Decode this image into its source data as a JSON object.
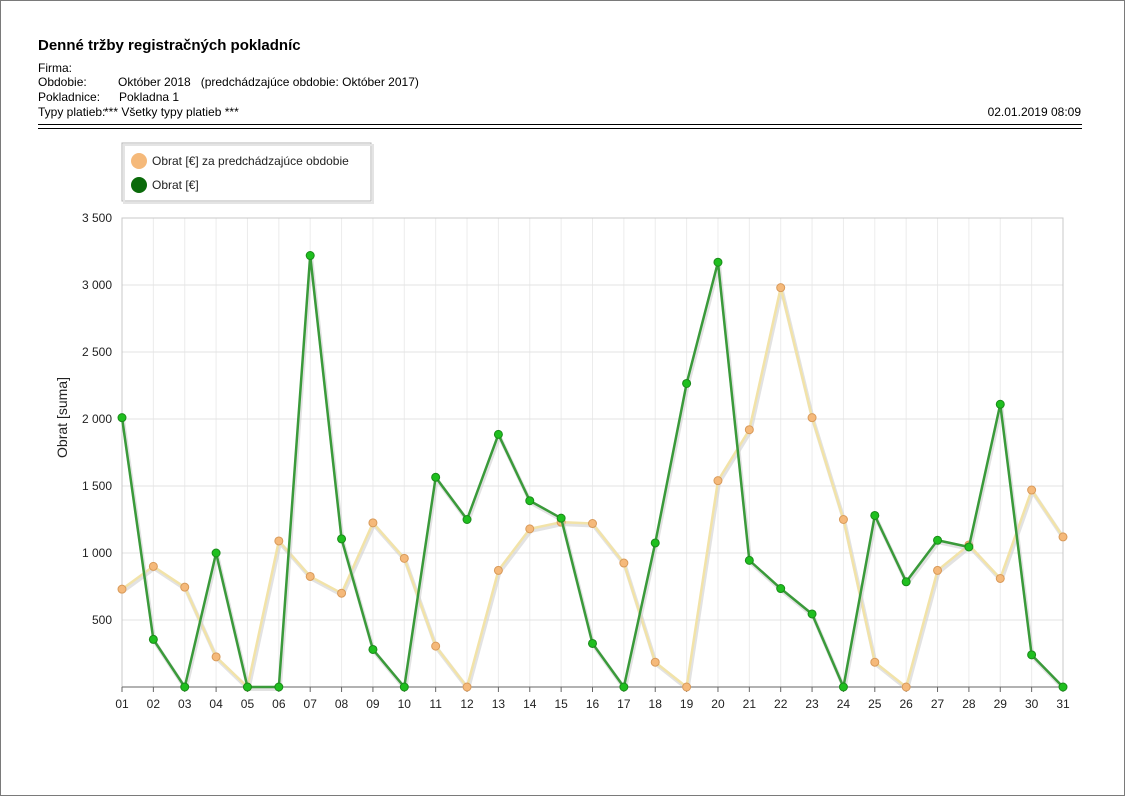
{
  "report": {
    "title": "Denné tržby registračných pokladníc",
    "rows": [
      {
        "label": "Firma:",
        "value": ""
      },
      {
        "label": "Obdobie:",
        "value": "Október 2018   (predchádzajúce obdobie: Október 2017)"
      },
      {
        "label": "Pokladnice:",
        "value": "Pokladna 1"
      },
      {
        "label": "Typy platieb:",
        "value": "*** Všetky typy platieb ***"
      }
    ],
    "timestamp": "02.01.2019 08:09"
  },
  "chart_data": {
    "type": "line",
    "title": "",
    "xlabel": "",
    "ylabel": "Obrat [suma]",
    "ylim": [
      0,
      3500
    ],
    "yticks": [
      500,
      1000,
      1500,
      2000,
      2500,
      3000,
      3500
    ],
    "ytick_labels": [
      "500",
      "1 000",
      "1 500",
      "2 000",
      "2 500",
      "3 000",
      "3 500"
    ],
    "grid": true,
    "legend_position": "top-left",
    "categories": [
      "01",
      "02",
      "03",
      "04",
      "05",
      "06",
      "07",
      "08",
      "09",
      "10",
      "11",
      "12",
      "13",
      "14",
      "15",
      "16",
      "17",
      "18",
      "19",
      "20",
      "21",
      "22",
      "23",
      "24",
      "25",
      "26",
      "27",
      "28",
      "29",
      "30",
      "31"
    ],
    "series": [
      {
        "name": "Obrat [€] za predchádzajúce obdobie",
        "color": "#f5b97a",
        "line_color": "#f2e3a8",
        "values": [
          730,
          900,
          745,
          225,
          0,
          1090,
          825,
          700,
          1225,
          960,
          305,
          0,
          870,
          1180,
          1230,
          1220,
          925,
          185,
          0,
          1540,
          1920,
          2980,
          2010,
          1250,
          185,
          0,
          870,
          1060,
          810,
          1470,
          1120
        ]
      },
      {
        "name": "Obrat [€]",
        "color": "#1fbf1f",
        "line_color": "#3a9a3a",
        "legend_color": "#0a6a0a",
        "values": [
          2010,
          355,
          0,
          1000,
          0,
          0,
          3220,
          1105,
          280,
          0,
          1565,
          1250,
          1885,
          1390,
          1260,
          325,
          0,
          1075,
          2265,
          3170,
          945,
          735,
          545,
          0,
          1280,
          785,
          1095,
          1045,
          2110,
          240,
          0
        ]
      }
    ]
  }
}
